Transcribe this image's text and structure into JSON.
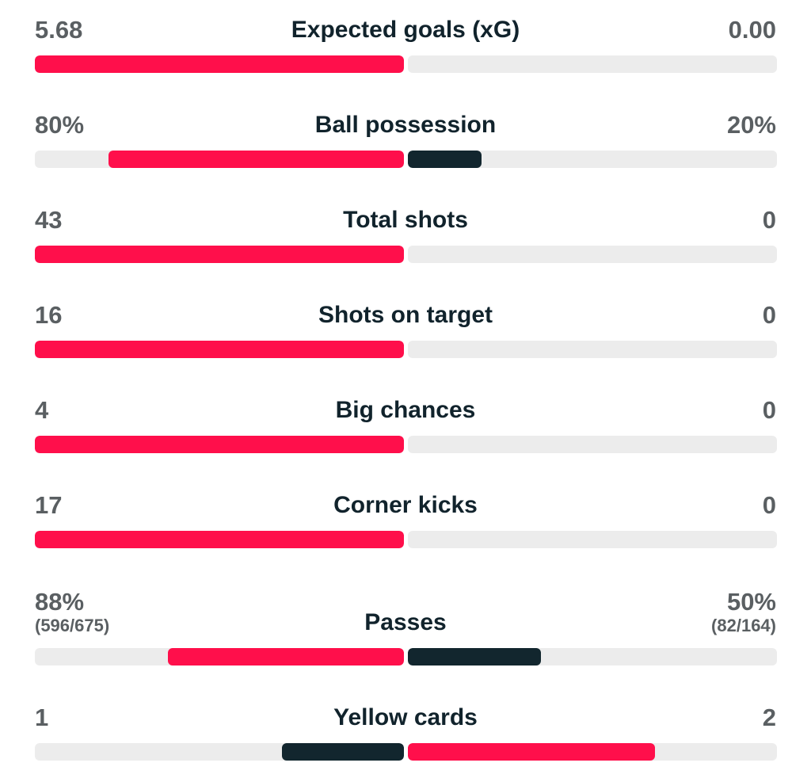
{
  "colors": {
    "winning": "#ff0f4b",
    "losing": "#12262e",
    "track": "#ececec",
    "value_text": "#5a5f62",
    "label_text": "#11232c"
  },
  "stats": [
    {
      "label": "Expected goals (xG)",
      "home": "5.68",
      "away": "0.00",
      "home_fill": 1.0,
      "away_fill": 0.0,
      "home_color": "winning",
      "away_color": "losing"
    },
    {
      "label": "Ball possession",
      "home": "80%",
      "away": "20%",
      "home_fill": 0.8,
      "away_fill": 0.2,
      "home_color": "winning",
      "away_color": "losing"
    },
    {
      "label": "Total shots",
      "home": "43",
      "away": "0",
      "home_fill": 1.0,
      "away_fill": 0.0,
      "home_color": "winning",
      "away_color": "losing"
    },
    {
      "label": "Shots on target",
      "home": "16",
      "away": "0",
      "home_fill": 1.0,
      "away_fill": 0.0,
      "home_color": "winning",
      "away_color": "losing"
    },
    {
      "label": "Big chances",
      "home": "4",
      "away": "0",
      "home_fill": 1.0,
      "away_fill": 0.0,
      "home_color": "winning",
      "away_color": "losing"
    },
    {
      "label": "Corner kicks",
      "home": "17",
      "away": "0",
      "home_fill": 1.0,
      "away_fill": 0.0,
      "home_color": "winning",
      "away_color": "losing"
    },
    {
      "label": "Passes",
      "home": "88%",
      "away": "50%",
      "home_sub": "(596/675)",
      "away_sub": "(82/164)",
      "home_fill": 0.64,
      "away_fill": 0.36,
      "home_color": "winning",
      "away_color": "losing"
    },
    {
      "label": "Yellow cards",
      "home": "1",
      "away": "2",
      "home_fill": 0.33,
      "away_fill": 0.67,
      "home_color": "losing",
      "away_color": "winning"
    }
  ]
}
